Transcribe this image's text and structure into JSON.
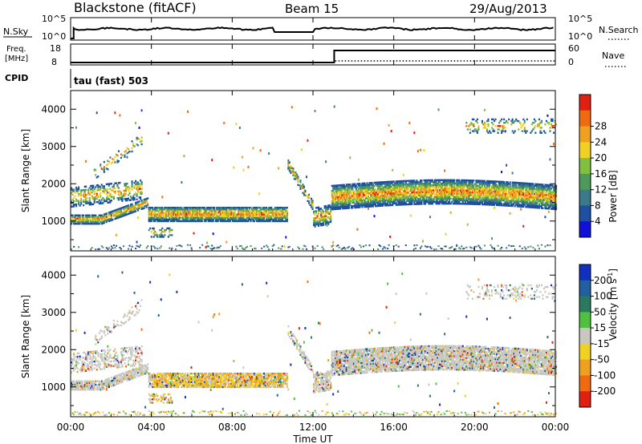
{
  "header": {
    "station": "Blackstone (fitACF)",
    "beam": "Beam 15",
    "date": "29/Aug/2013"
  },
  "top_panels": {
    "nsky_label": "N.Sky",
    "nsky_ticks": [
      "10^5",
      "10^0"
    ],
    "nsearch_label": "N.Search",
    "nsearch_ticks": [
      "10^5",
      "10^0"
    ],
    "freq_label": "Freq.",
    "freq_unit": "[MHz]",
    "freq_ticks": [
      "18",
      "8"
    ],
    "nave_label": "Nave",
    "nave_ticks": [
      "60",
      "0"
    ],
    "cpid_label": "CPID",
    "cpid_value": "tau (fast) 503"
  },
  "x_axis": {
    "label": "Time UT",
    "ticks": [
      "00:00",
      "04:00",
      "08:00",
      "12:00",
      "16:00",
      "20:00",
      "00:00"
    ],
    "tick_hours": [
      0,
      4,
      8,
      12,
      16,
      20,
      24
    ]
  },
  "chart_data": [
    {
      "type": "heatmap",
      "ylabel": "Slant Range [km]",
      "yticks": [
        1000,
        2000,
        3000,
        4000
      ],
      "ylim": [
        200,
        4500
      ],
      "xlim": [
        0,
        24
      ],
      "colorbar": {
        "label": "Power [dB]",
        "ticks": [
          4,
          8,
          12,
          16,
          20,
          24,
          28
        ],
        "colors": [
          "#1010d8",
          "#1f4fa0",
          "#3a7a8a",
          "#4f9a5a",
          "#80c040",
          "#f0d020",
          "#f0a020",
          "#f06a10",
          "#e02010"
        ]
      }
    },
    {
      "type": "heatmap",
      "ylabel": "Slant Range [km]",
      "yticks": [
        1000,
        2000,
        3000,
        4000
      ],
      "ylim": [
        200,
        4500
      ],
      "xlim": [
        0,
        24
      ],
      "colorbar": {
        "label": "Velocity [m s^-1]",
        "ticks": [
          200,
          100,
          50,
          15,
          -15,
          -50,
          -100,
          -200
        ],
        "colors": [
          "#1030c0",
          "#2060a0",
          "#2a7a60",
          "#50c040",
          "#c8c8c0",
          "#f0d020",
          "#f0a020",
          "#f06a10",
          "#e02010"
        ]
      }
    }
  ]
}
